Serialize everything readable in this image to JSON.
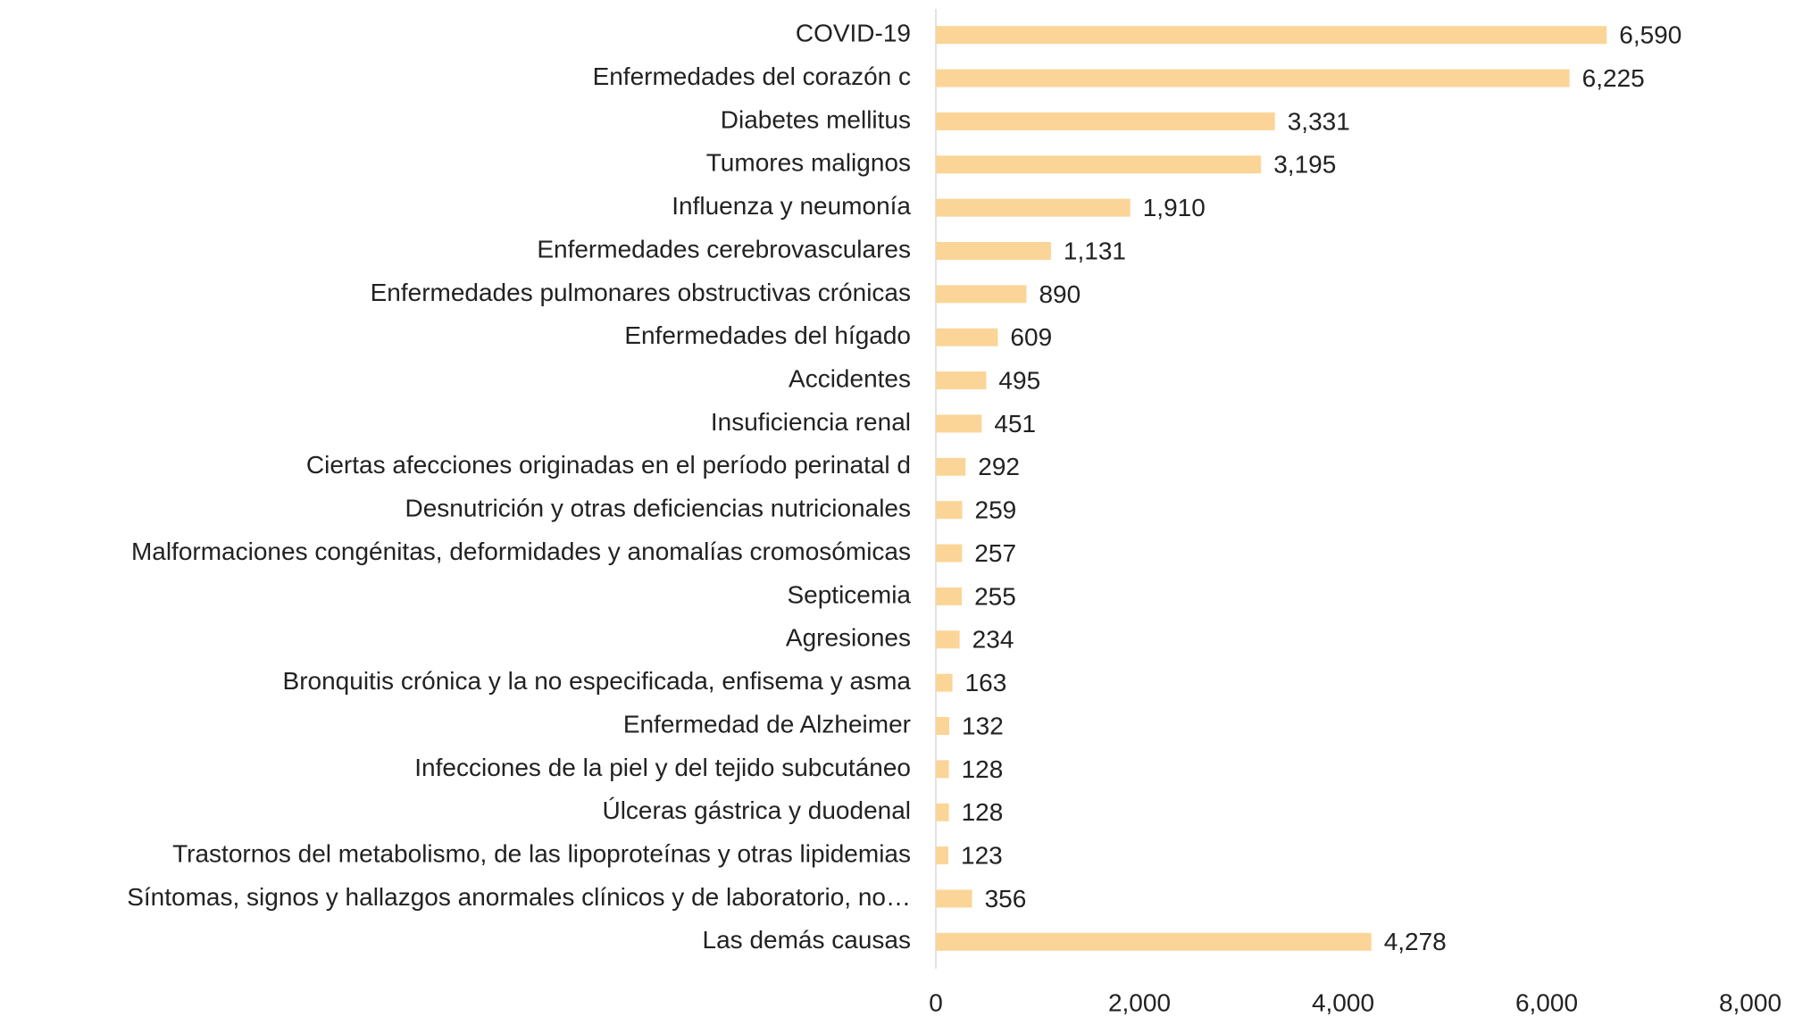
{
  "chart_data": {
    "type": "bar",
    "orientation": "horizontal",
    "categories": [
      "COVID-19",
      "Enfermedades del corazón c",
      "Diabetes mellitus",
      "Tumores malignos",
      "Influenza y neumonía",
      "Enfermedades cerebrovasculares",
      "Enfermedades pulmonares obstructivas crónicas",
      "Enfermedades del hígado",
      "Accidentes",
      "Insuficiencia renal",
      "Ciertas afecciones originadas en el período perinatal d",
      "Desnutrición y otras deficiencias nutricionales",
      "Malformaciones congénitas, deformidades y anomalías cromosómicas",
      "Septicemia",
      "Agresiones",
      "Bronquitis crónica y la no especificada, enfisema y asma",
      "Enfermedad de Alzheimer",
      "Infecciones de la piel y del tejido subcutáneo",
      "Úlceras gástrica y duodenal",
      "Trastornos del metabolismo, de las lipoproteínas y otras lipidemias",
      "Síntomas, signos y hallazgos anormales clínicos y de laboratorio, no…",
      "Las demás causas"
    ],
    "values": [
      6590,
      6225,
      3331,
      3195,
      1910,
      1131,
      890,
      609,
      495,
      451,
      292,
      259,
      257,
      255,
      234,
      163,
      132,
      128,
      128,
      123,
      356,
      4278
    ],
    "value_labels": [
      "6,590",
      "6,225",
      "3,331",
      "3,195",
      "1,910",
      "1,131",
      "890",
      "609",
      "495",
      "451",
      "292",
      "259",
      "257",
      "255",
      "234",
      "163",
      "132",
      "128",
      "128",
      "123",
      "356",
      "4,278"
    ],
    "color": "#fbd597",
    "xlim": [
      0,
      8000
    ],
    "xticks": [
      0,
      {
        "value": 2000,
        "label": "2,000"
      },
      {
        "value": 4000,
        "label": "4,000"
      },
      {
        "value": 6000,
        "label": "6,000"
      },
      {
        "value": 8000,
        "label": "8,000"
      }
    ],
    "grid": false
  }
}
